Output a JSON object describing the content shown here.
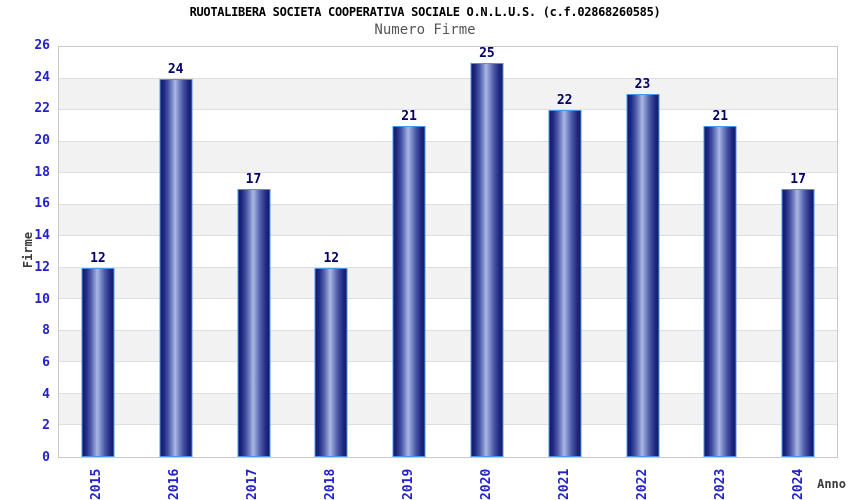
{
  "header": {
    "title": "RUOTALIBERA SOCIETA COOPERATIVA SOCIALE O.N.L.U.S. (c.f.02868260585)",
    "subtitle": "Numero Firme"
  },
  "chart_data": {
    "type": "bar",
    "title": "RUOTALIBERA SOCIETA COOPERATIVA SOCIALE O.N.L.U.S. (c.f.02868260585)",
    "subtitle": "Numero Firme",
    "categories": [
      "2015",
      "2016",
      "2017",
      "2018",
      "2019",
      "2020",
      "2021",
      "2022",
      "2023",
      "2024"
    ],
    "values": [
      12,
      24,
      17,
      12,
      21,
      25,
      22,
      23,
      21,
      17
    ],
    "xlabel": "Anno",
    "ylabel": "Firme",
    "ylim": [
      0,
      26
    ],
    "ytick_step": 2,
    "yticks": [
      0,
      2,
      4,
      6,
      8,
      10,
      12,
      14,
      16,
      18,
      20,
      22,
      24,
      26
    ],
    "grid": true,
    "legend_position": "none",
    "bar_value_labels_shown": true,
    "colors": {
      "bar_edge": "#131969",
      "bar_center": "#aab7e5",
      "bar_border": "#4a96e6",
      "tick_label": "#2222cc",
      "value_label": "#000066",
      "band_alt": "#f2f2f2",
      "gridline": "#dedede",
      "plot_border": "#c9c9c9",
      "axis_title": "#3a3a3a",
      "title": "#000000",
      "subtitle": "#555555",
      "background": "#ffffff"
    }
  }
}
